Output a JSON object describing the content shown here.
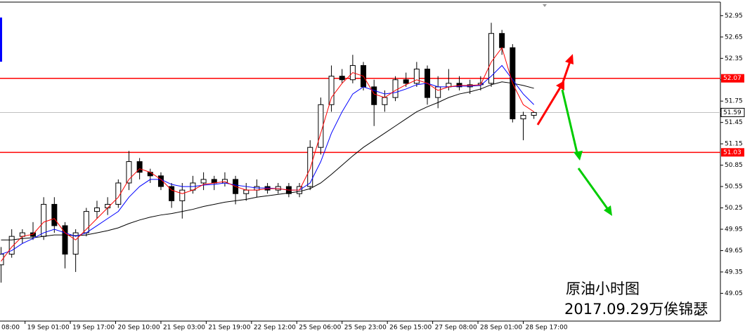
{
  "chart_data": {
    "type": "candlestick",
    "x": [
      8,
      12,
      16,
      20,
      24,
      28,
      32,
      36,
      40,
      44,
      48,
      52,
      56,
      60,
      64,
      68,
      72,
      76,
      80,
      84,
      88,
      92,
      96,
      100,
      104,
      108,
      112,
      116,
      120,
      124,
      128,
      132,
      136,
      140,
      144,
      148,
      152,
      156,
      160,
      164,
      168,
      172,
      176,
      180,
      184,
      188,
      192,
      196,
      200,
      204,
      208
    ],
    "open": [
      49.45,
      49.6,
      49.85,
      49.9,
      49.85,
      50.3,
      50.0,
      49.6,
      49.9,
      50.2,
      50.25,
      50.3,
      50.6,
      50.9,
      50.75,
      50.7,
      50.55,
      50.35,
      50.5,
      50.6,
      50.65,
      50.6,
      50.65,
      50.45,
      50.5,
      50.55,
      50.5,
      50.55,
      50.45,
      50.55,
      51.1,
      51.7,
      52.1,
      52.05,
      52.25,
      51.95,
      51.7,
      51.8,
      52.05,
      52.0,
      52.2,
      51.8,
      51.95,
      52.0,
      51.95,
      51.98,
      52.0,
      52.7,
      52.5,
      51.5,
      51.55
    ],
    "high": [
      49.7,
      49.95,
      49.95,
      50.05,
      50.4,
      50.4,
      50.05,
      49.95,
      50.25,
      50.35,
      50.4,
      50.65,
      51.05,
      50.95,
      50.8,
      50.75,
      50.6,
      50.6,
      50.7,
      50.75,
      50.7,
      50.75,
      50.7,
      50.6,
      50.65,
      50.6,
      50.6,
      50.6,
      50.6,
      51.2,
      51.8,
      52.25,
      52.2,
      52.4,
      52.3,
      52.05,
      51.9,
      52.1,
      52.15,
      52.3,
      52.25,
      52.1,
      52.2,
      52.1,
      52.05,
      52.1,
      52.85,
      52.75,
      52.55,
      51.6,
      51.6
    ],
    "low": [
      49.2,
      49.55,
      49.75,
      49.8,
      49.8,
      49.9,
      49.4,
      49.35,
      49.85,
      50.1,
      50.15,
      50.25,
      50.5,
      50.65,
      50.6,
      50.5,
      50.25,
      50.1,
      50.45,
      50.5,
      50.5,
      50.55,
      50.3,
      50.35,
      50.4,
      50.45,
      50.45,
      50.4,
      50.4,
      50.5,
      51.0,
      51.6,
      52.0,
      52.0,
      51.9,
      51.4,
      51.6,
      51.75,
      51.95,
      51.95,
      51.7,
      51.65,
      51.9,
      51.9,
      51.85,
      51.9,
      51.95,
      52.4,
      51.45,
      51.2,
      51.5
    ],
    "close": [
      49.6,
      49.85,
      49.9,
      49.85,
      50.3,
      50.0,
      49.6,
      49.9,
      50.2,
      50.25,
      50.3,
      50.6,
      50.9,
      50.75,
      50.7,
      50.55,
      50.35,
      50.5,
      50.6,
      50.65,
      50.6,
      50.65,
      50.45,
      50.5,
      50.55,
      50.5,
      50.55,
      50.45,
      50.55,
      51.1,
      51.7,
      52.1,
      52.05,
      52.25,
      51.95,
      51.7,
      51.8,
      52.05,
      52.0,
      52.2,
      51.8,
      51.95,
      52.0,
      51.95,
      51.98,
      52.0,
      52.7,
      52.5,
      51.5,
      51.55,
      51.59
    ],
    "series": [
      {
        "color": "#000000",
        "values": [
          49.8,
          49.8,
          49.82,
          49.83,
          49.85,
          49.87,
          49.87,
          49.86,
          49.87,
          49.9,
          49.93,
          49.97,
          50.03,
          50.08,
          50.12,
          50.15,
          50.17,
          50.2,
          50.23,
          50.27,
          50.3,
          50.33,
          50.35,
          50.37,
          50.4,
          50.42,
          50.44,
          50.46,
          50.48,
          50.52,
          50.6,
          50.72,
          50.85,
          50.98,
          51.1,
          51.2,
          51.3,
          51.4,
          51.5,
          51.6,
          51.67,
          51.73,
          51.8,
          51.85,
          51.88,
          51.92,
          51.98,
          52.02,
          52.0,
          51.97,
          51.93
        ]
      },
      {
        "color": "#0000ff",
        "values": [
          49.6,
          49.65,
          49.75,
          49.82,
          49.9,
          49.95,
          49.9,
          49.85,
          49.9,
          50.0,
          50.1,
          50.2,
          50.4,
          50.55,
          50.65,
          50.65,
          50.58,
          50.55,
          50.55,
          50.57,
          50.58,
          50.6,
          50.57,
          50.55,
          50.53,
          50.53,
          50.52,
          50.5,
          50.5,
          50.6,
          50.9,
          51.3,
          51.6,
          51.85,
          51.95,
          51.9,
          51.85,
          51.87,
          51.92,
          51.98,
          52.0,
          51.95,
          51.95,
          51.96,
          51.96,
          51.97,
          52.1,
          52.25,
          52.05,
          51.85,
          51.7
        ]
      },
      {
        "color": "#ff0000",
        "values": [
          49.5,
          49.7,
          49.85,
          49.88,
          50.05,
          50.1,
          49.9,
          49.8,
          49.95,
          50.1,
          50.25,
          50.4,
          50.65,
          50.8,
          50.75,
          50.65,
          50.5,
          50.45,
          50.5,
          50.58,
          50.6,
          50.62,
          50.55,
          50.5,
          50.5,
          50.52,
          50.52,
          50.5,
          50.5,
          50.8,
          51.3,
          51.8,
          52.0,
          52.15,
          52.1,
          51.85,
          51.8,
          51.9,
          51.98,
          52.05,
          52.0,
          51.9,
          51.95,
          51.97,
          51.97,
          51.98,
          52.3,
          52.5,
          52.0,
          51.7,
          51.6
        ]
      }
    ],
    "xlim": [
      7.6,
      278
    ],
    "xticks": [
      {
        "value": 0,
        "label": "08:00"
      },
      {
        "value": 17,
        "label": "19 Sep 01:00"
      },
      {
        "value": 34,
        "label": "19 Sep 17:00"
      },
      {
        "value": 51,
        "label": "20 Sep 10:00"
      },
      {
        "value": 68,
        "label": "21 Sep 03:00"
      },
      {
        "value": 85,
        "label": "21 Sep 19:00"
      },
      {
        "value": 102,
        "label": "22 Sep 12:00"
      },
      {
        "value": 119,
        "label": "25 Sep 06:00"
      },
      {
        "value": 136,
        "label": "25 Sep 23:00"
      },
      {
        "value": 153,
        "label": "26 Sep 15:00"
      },
      {
        "value": 170,
        "label": "27 Sep 08:00"
      },
      {
        "value": 187,
        "label": "28 Sep 01:00"
      },
      {
        "value": 204,
        "label": "28 Sep 17:00"
      }
    ],
    "ylim": [
      48.66,
      53.17
    ],
    "yticks": [
      49.05,
      49.35,
      49.65,
      49.95,
      50.25,
      50.55,
      50.85,
      51.15,
      51.45,
      51.75,
      52.05,
      52.35,
      52.65,
      52.95
    ],
    "levels": [
      {
        "value": 52.07,
        "color": "#ff0000"
      },
      {
        "value": 51.03,
        "color": "#ff0000"
      }
    ],
    "current_price": 51.59,
    "annotations": [
      "原油小时图",
      "2017.09.29万俟锦瑟"
    ]
  }
}
